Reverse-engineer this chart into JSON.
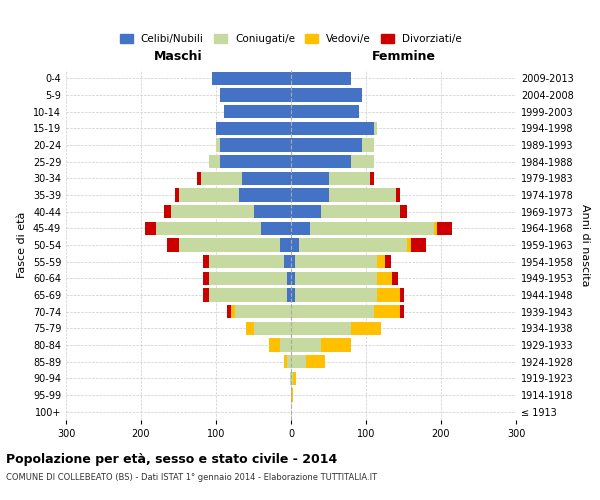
{
  "age_groups": [
    "100+",
    "95-99",
    "90-94",
    "85-89",
    "80-84",
    "75-79",
    "70-74",
    "65-69",
    "60-64",
    "55-59",
    "50-54",
    "45-49",
    "40-44",
    "35-39",
    "30-34",
    "25-29",
    "20-24",
    "15-19",
    "10-14",
    "5-9",
    "0-4"
  ],
  "birth_years": [
    "≤ 1913",
    "1914-1918",
    "1919-1923",
    "1924-1928",
    "1929-1933",
    "1934-1938",
    "1939-1943",
    "1944-1948",
    "1949-1953",
    "1954-1958",
    "1959-1963",
    "1964-1968",
    "1969-1973",
    "1974-1978",
    "1979-1983",
    "1984-1988",
    "1989-1993",
    "1994-1998",
    "1999-2003",
    "2004-2008",
    "2009-2013"
  ],
  "males": {
    "celibi": [
      0,
      0,
      0,
      0,
      0,
      0,
      0,
      5,
      5,
      10,
      15,
      40,
      50,
      70,
      65,
      95,
      95,
      100,
      90,
      95,
      105
    ],
    "coniugati": [
      0,
      0,
      2,
      5,
      15,
      50,
      75,
      105,
      105,
      100,
      135,
      140,
      110,
      80,
      55,
      15,
      5,
      0,
      0,
      0,
      0
    ],
    "vedovi": [
      0,
      0,
      0,
      5,
      15,
      10,
      5,
      0,
      0,
      0,
      0,
      0,
      0,
      0,
      0,
      0,
      0,
      0,
      0,
      0,
      0
    ],
    "divorziati": [
      0,
      0,
      0,
      0,
      0,
      0,
      5,
      8,
      8,
      8,
      15,
      15,
      10,
      5,
      5,
      0,
      0,
      0,
      0,
      0,
      0
    ]
  },
  "females": {
    "nubili": [
      0,
      0,
      0,
      0,
      0,
      0,
      0,
      5,
      5,
      5,
      10,
      25,
      40,
      50,
      50,
      80,
      95,
      110,
      90,
      95,
      80
    ],
    "coniugate": [
      0,
      0,
      2,
      20,
      40,
      80,
      110,
      110,
      110,
      110,
      145,
      165,
      105,
      90,
      55,
      30,
      15,
      5,
      0,
      0,
      0
    ],
    "vedove": [
      0,
      2,
      5,
      25,
      40,
      40,
      35,
      30,
      20,
      10,
      5,
      5,
      0,
      0,
      0,
      0,
      0,
      0,
      0,
      0,
      0
    ],
    "divorziate": [
      0,
      0,
      0,
      0,
      0,
      0,
      5,
      5,
      8,
      8,
      20,
      20,
      10,
      5,
      5,
      0,
      0,
      0,
      0,
      0,
      0
    ]
  },
  "colors": {
    "celibi": "#4472c4",
    "coniugati": "#c5d9a0",
    "vedovi": "#ffc000",
    "divorziati": "#cc0000"
  },
  "xlim": 300,
  "title": "Popolazione per età, sesso e stato civile - 2014",
  "subtitle": "COMUNE DI COLLEBEATO (BS) - Dati ISTAT 1° gennaio 2014 - Elaborazione TUTTITALIA.IT",
  "ylabel_left": "Fasce di età",
  "ylabel_right": "Anni di nascita",
  "xlabel_maschi": "Maschi",
  "xlabel_femmine": "Femmine",
  "legend_labels": [
    "Celibi/Nubili",
    "Coniugati/e",
    "Vedovi/e",
    "Divorziati/e"
  ],
  "background_color": "#ffffff",
  "grid_color": "#cccccc"
}
